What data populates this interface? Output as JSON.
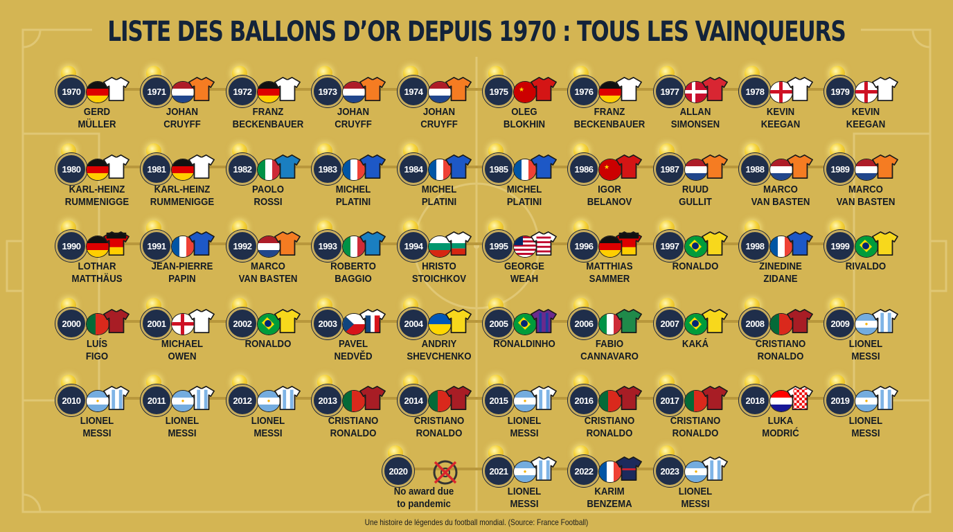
{
  "title": "LISTE DES BALLONS D’OR DEPUIS 1970 : TOUS LES VAINQUEURS",
  "footer": "Une histoire de légendes du football mondial. (Source: France Football)",
  "colors": {
    "background": "#d4b553",
    "badge": "#1f2e4a",
    "title": "#13233a",
    "pitch_lines": "#e3cb7c"
  },
  "winners": [
    {
      "year": "1970",
      "line1": "GERD",
      "line2": "MÜLLER",
      "country": "germany"
    },
    {
      "year": "1971",
      "line1": "JOHAN",
      "line2": "CRUYFF",
      "country": "netherlands"
    },
    {
      "year": "1972",
      "line1": "FRANZ",
      "line2": "BECKENBAUER",
      "country": "germany"
    },
    {
      "year": "1973",
      "line1": "JOHAN",
      "line2": "CRUYFF",
      "country": "netherlands"
    },
    {
      "year": "1974",
      "line1": "JOHAN",
      "line2": "CRUYFF",
      "country": "netherlands"
    },
    {
      "year": "1975",
      "line1": "OLEG",
      "line2": "BLOKHIN",
      "country": "ussr"
    },
    {
      "year": "1976",
      "line1": "FRANZ",
      "line2": "BECKENBAUER",
      "country": "germany"
    },
    {
      "year": "1977",
      "line1": "ALLAN",
      "line2": "SIMONSEN",
      "country": "denmark"
    },
    {
      "year": "1978",
      "line1": "KEVIN",
      "line2": "KEEGAN",
      "country": "england"
    },
    {
      "year": "1979",
      "line1": "KEVIN",
      "line2": "KEEGAN",
      "country": "england"
    },
    {
      "year": "1980",
      "line1": "KARL-HEINZ",
      "line2": "RUMMENIGGE",
      "country": "germany"
    },
    {
      "year": "1981",
      "line1": "KARL-HEINZ",
      "line2": "RUMMENIGGE",
      "country": "germany"
    },
    {
      "year": "1982",
      "line1": "PAOLO",
      "line2": "ROSSI",
      "country": "italy"
    },
    {
      "year": "1983",
      "line1": "MICHEL",
      "line2": "PLATINI",
      "country": "france"
    },
    {
      "year": "1984",
      "line1": "MICHEL",
      "line2": "PLATINI",
      "country": "france"
    },
    {
      "year": "1985",
      "line1": "MICHEL",
      "line2": "PLATINI",
      "country": "france"
    },
    {
      "year": "1986",
      "line1": "IGOR",
      "line2": "BELANOV",
      "country": "ussr"
    },
    {
      "year": "1987",
      "line1": "RUUD",
      "line2": "GULLIT",
      "country": "netherlands"
    },
    {
      "year": "1988",
      "line1": "MARCO",
      "line2": "VAN BASTEN",
      "country": "netherlands"
    },
    {
      "year": "1989",
      "line1": "MARCO",
      "line2": "VAN BASTEN",
      "country": "netherlands"
    },
    {
      "year": "1990",
      "line1": "LOTHAR",
      "line2": "MATTHÄUS",
      "country": "germany"
    },
    {
      "year": "1991",
      "line1": "JEAN-PIERRE",
      "line2": "PAPIN",
      "country": "france"
    },
    {
      "year": "1992",
      "line1": "MARCO",
      "line2": "VAN BASTEN",
      "country": "netherlands"
    },
    {
      "year": "1993",
      "line1": "ROBERTO",
      "line2": "BAGGIO",
      "country": "italy"
    },
    {
      "year": "1994",
      "line1": "HRISTO",
      "line2": "STOICHKOV",
      "country": "bulgaria"
    },
    {
      "year": "1995",
      "line1": "GEORGE",
      "line2": "WEAH",
      "country": "liberia"
    },
    {
      "year": "1996",
      "line1": "MATTHIAS",
      "line2": "SAMMER",
      "country": "germany"
    },
    {
      "year": "1997",
      "line1": "RONALDO",
      "line2": "",
      "country": "brazil"
    },
    {
      "year": "1998",
      "line1": "ZINEDINE",
      "line2": "ZIDANE",
      "country": "france"
    },
    {
      "year": "1999",
      "line1": "RIVALDO",
      "line2": "",
      "country": "brazil"
    },
    {
      "year": "2000",
      "line1": "LUÍS",
      "line2": "FIGO",
      "country": "portugal"
    },
    {
      "year": "2001",
      "line1": "MICHAEL",
      "line2": "OWEN",
      "country": "england"
    },
    {
      "year": "2002",
      "line1": "RONALDO",
      "line2": "",
      "country": "brazil"
    },
    {
      "year": "2003",
      "line1": "PAVEL",
      "line2": "NEDVĚD",
      "country": "czechia"
    },
    {
      "year": "2004",
      "line1": "ANDRIY",
      "line2": "SHEVCHENKO",
      "country": "ukraine"
    },
    {
      "year": "2005",
      "line1": "RONALDINHO",
      "line2": "",
      "country": "brazil"
    },
    {
      "year": "2006",
      "line1": "FABIO",
      "line2": "CANNAVARO",
      "country": "italy"
    },
    {
      "year": "2007",
      "line1": "KAKÁ",
      "line2": "",
      "country": "brazil"
    },
    {
      "year": "2008",
      "line1": "CRISTIANO",
      "line2": "RONALDO",
      "country": "portugal"
    },
    {
      "year": "2009",
      "line1": "LIONEL",
      "line2": "MESSI",
      "country": "argentina"
    },
    {
      "year": "2010",
      "line1": "LIONEL",
      "line2": "MESSI",
      "country": "argentina"
    },
    {
      "year": "2011",
      "line1": "LIONEL",
      "line2": "MESSI",
      "country": "argentina"
    },
    {
      "year": "2012",
      "line1": "LIONEL",
      "line2": "MESSI",
      "country": "argentina"
    },
    {
      "year": "2013",
      "line1": "CRISTIANO",
      "line2": "RONALDO",
      "country": "portugal"
    },
    {
      "year": "2014",
      "line1": "CRISTIANO",
      "line2": "RONALDO",
      "country": "portugal"
    },
    {
      "year": "2015",
      "line1": "LIONEL",
      "line2": "MESSI",
      "country": "argentina"
    },
    {
      "year": "2016",
      "line1": "CRISTIANO",
      "line2": "RONALDO",
      "country": "portugal"
    },
    {
      "year": "2017",
      "line1": "CRISTIANO",
      "line2": "RONALDO",
      "country": "portugal"
    },
    {
      "year": "2018",
      "line1": "LUKA",
      "line2": "MODRIĆ",
      "country": "croatia"
    },
    {
      "year": "2019",
      "line1": "LIONEL",
      "line2": "MESSI",
      "country": "argentina"
    },
    {
      "year": "2020",
      "line1": "No award due",
      "line2": "to pandemic",
      "country": "none"
    },
    {
      "year": "2021",
      "line1": "LIONEL",
      "line2": "MESSI",
      "country": "argentina"
    },
    {
      "year": "2022",
      "line1": "KARIM",
      "line2": "BENZEMA",
      "country": "france"
    },
    {
      "year": "2023",
      "line1": "LIONEL",
      "line2": "MESSI",
      "country": "argentina"
    }
  ]
}
